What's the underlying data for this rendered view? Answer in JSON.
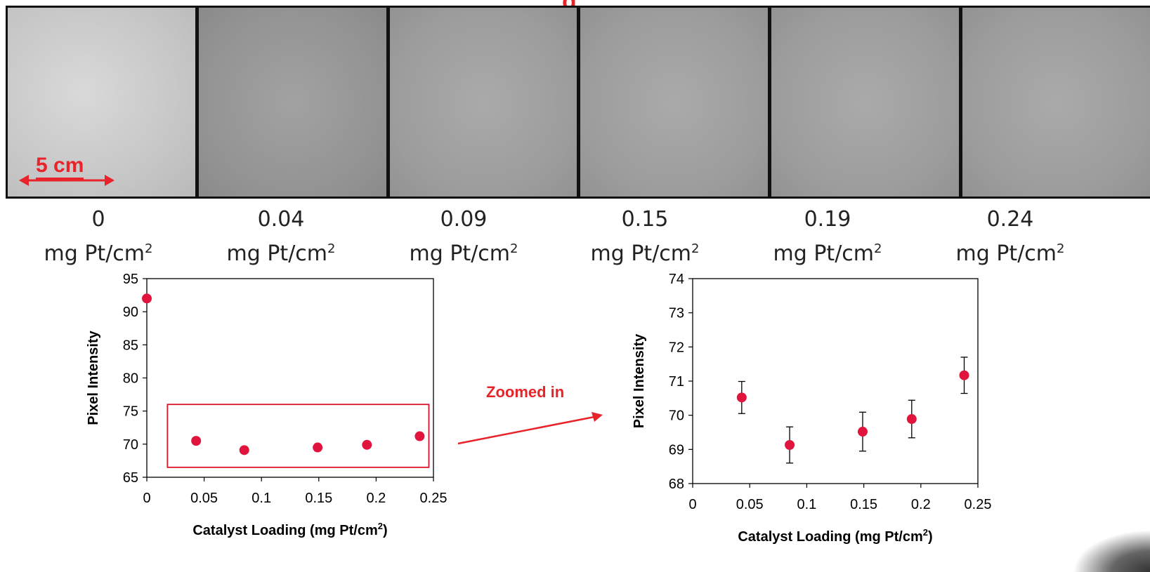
{
  "strip": {
    "scale_label": "5 cm",
    "title_fragment": "g",
    "samples": [
      {
        "value": "0",
        "unit": "mg Pt/cm",
        "sup": "2"
      },
      {
        "value": "0.04",
        "unit": "mg Pt/cm",
        "sup": "2"
      },
      {
        "value": "0.09",
        "unit": "mg Pt/cm",
        "sup": "2"
      },
      {
        "value": "0.15",
        "unit": "mg Pt/cm",
        "sup": "2"
      },
      {
        "value": "0.19",
        "unit": "mg Pt/cm",
        "sup": "2"
      },
      {
        "value": "0.24",
        "unit": "mg Pt/cm",
        "sup": "2"
      }
    ]
  },
  "annotation": {
    "zoom_label": "Zoomed in"
  },
  "colors": {
    "marker": "#e0143c",
    "accent": "#e8232a",
    "axis": "#000000"
  },
  "chart_data": [
    {
      "type": "scatter",
      "title": "",
      "xlabel": "Catalyst Loading (mg Pt/cm",
      "xlabel_sup": "2",
      "xlabel_end": ")",
      "ylabel": "Pixel Intensity",
      "xlim": [
        0,
        0.25
      ],
      "ylim": [
        65,
        95
      ],
      "xticks": [
        "0",
        "0.05",
        "0.1",
        "0.15",
        "0.2",
        "0.25"
      ],
      "yticks": [
        "65",
        "70",
        "75",
        "80",
        "85",
        "90",
        "95"
      ],
      "points": [
        {
          "x": 0,
          "y": 92.0
        },
        {
          "x": 0.043,
          "y": 70.5
        },
        {
          "x": 0.085,
          "y": 69.1
        },
        {
          "x": 0.149,
          "y": 69.5
        },
        {
          "x": 0.192,
          "y": 69.9
        },
        {
          "x": 0.238,
          "y": 71.2
        }
      ],
      "highlight_box": {
        "x": [
          0.018,
          0.246
        ],
        "y": [
          66.5,
          76.0
        ]
      },
      "grid": false
    },
    {
      "type": "scatter",
      "title": "",
      "xlabel": "Catalyst Loading (mg Pt/cm",
      "xlabel_sup": "2",
      "xlabel_end": ")",
      "ylabel": "Pixel Intensity",
      "xlim": [
        0,
        0.25
      ],
      "ylim": [
        68,
        74
      ],
      "xticks": [
        "0",
        "0.05",
        "0.1",
        "0.15",
        "0.2",
        "0.25"
      ],
      "yticks": [
        "68",
        "69",
        "70",
        "71",
        "72",
        "73",
        "74"
      ],
      "points": [
        {
          "x": 0.043,
          "y": 70.52,
          "err": 0.47
        },
        {
          "x": 0.085,
          "y": 69.13,
          "err": 0.53
        },
        {
          "x": 0.149,
          "y": 69.52,
          "err": 0.57
        },
        {
          "x": 0.192,
          "y": 69.89,
          "err": 0.55
        },
        {
          "x": 0.238,
          "y": 71.17,
          "err": 0.53
        }
      ],
      "grid": false
    }
  ]
}
